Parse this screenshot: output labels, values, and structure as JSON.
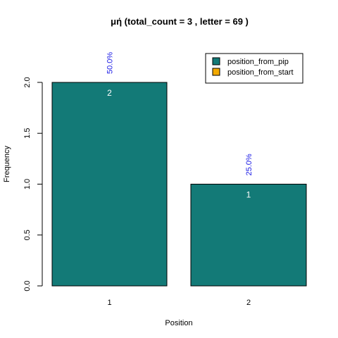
{
  "chart_data": {
    "type": "bar",
    "title": "μή  (total_count =  3 , letter = 69 )",
    "xlabel": "Position",
    "ylabel": "Frequency",
    "categories": [
      "1",
      "2"
    ],
    "series": [
      {
        "name": "position_from_pip",
        "values": [
          2,
          1
        ],
        "color": "#137a77"
      },
      {
        "name": "position_from_start",
        "values": [
          0,
          0
        ],
        "color": "#f2a900"
      }
    ],
    "bar_labels": [
      "2",
      "1"
    ],
    "percent_labels": [
      "50.0%",
      "25.0%"
    ],
    "yticks": [
      "0.0",
      "0.5",
      "1.0",
      "1.5",
      "2.0"
    ],
    "ylim": [
      0,
      2
    ],
    "grid": false,
    "legend_position": "top-right",
    "colors": {
      "bar": "#137a77",
      "percent_label": "#1a1ae6"
    }
  }
}
